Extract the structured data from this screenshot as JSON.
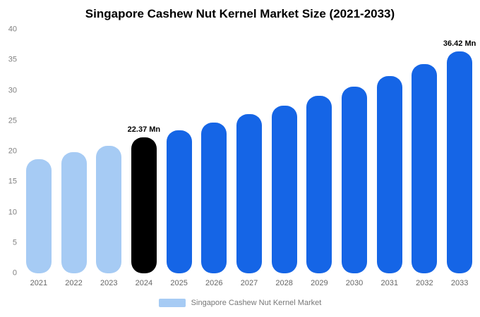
{
  "chart_data": {
    "type": "bar",
    "title": "Singapore Cashew Nut Kernel Market Size (2021-2033)",
    "categories": [
      "2021",
      "2022",
      "2023",
      "2024",
      "2025",
      "2026",
      "2027",
      "2028",
      "2029",
      "2030",
      "2031",
      "2032",
      "2033"
    ],
    "values": [
      18.7,
      19.9,
      20.9,
      22.37,
      23.5,
      24.7,
      26.1,
      27.5,
      29.1,
      30.6,
      32.4,
      34.3,
      36.42
    ],
    "bar_colors": [
      "#A6CBF4",
      "#A6CBF4",
      "#A6CBF4",
      "#000000",
      "#1565E6",
      "#1565E6",
      "#1565E6",
      "#1565E6",
      "#1565E6",
      "#1565E6",
      "#1565E6",
      "#1565E6",
      "#1565E6"
    ],
    "annotations": [
      {
        "category": "2024",
        "text": "22.37 Mn"
      },
      {
        "category": "2033",
        "text": "36.42 Mn"
      }
    ],
    "ylim": [
      0,
      40
    ],
    "yticks": [
      0,
      5,
      10,
      15,
      20,
      25,
      30,
      35,
      40
    ],
    "grid": false,
    "legend_position": "bottom",
    "legend": [
      {
        "label": "Singapore Cashew Nut Kernel Market",
        "color": "#A6CBF4"
      }
    ],
    "unit": "Mn"
  }
}
